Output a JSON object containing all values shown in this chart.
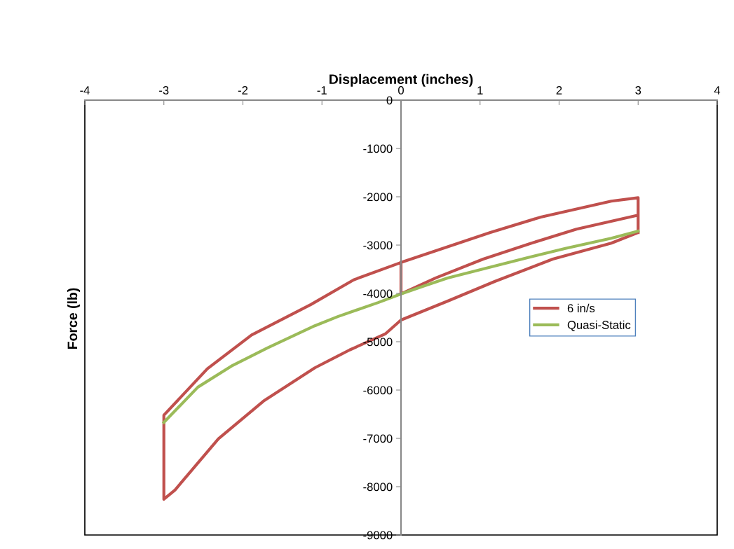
{
  "chart_data": {
    "type": "line",
    "xlabel": "Displacement (inches)",
    "ylabel": "Force (lb)",
    "xlim": [
      -4,
      4
    ],
    "xticks": [
      -4,
      -3,
      -2,
      -1,
      0,
      1,
      2,
      3,
      4
    ],
    "ylim": [
      -9000,
      0
    ],
    "yticks": [
      -9000,
      -8000,
      -7000,
      -6000,
      -5000,
      -4000,
      -3000,
      -2000,
      -1000,
      0
    ],
    "grid": false,
    "legend": "right",
    "series": [
      {
        "name": "6 in/s",
        "color": "#c0504d",
        "x": [
          0,
          0,
          0.44,
          1.04,
          1.63,
          2.22,
          3.0,
          3.0,
          2.66,
          1.92,
          1.19,
          0.59,
          0,
          -0.2,
          -0.65,
          -1.09,
          -1.74,
          -2.31,
          -2.86,
          -3.0,
          -3.0,
          -2.45,
          -1.89,
          -1.14,
          -0.6,
          0,
          1.13,
          1.77,
          2.66,
          3.0,
          3.0
        ],
        "values": [
          -3360,
          -4010,
          -3680,
          -3290,
          -2970,
          -2670,
          -2380,
          -2740,
          -2960,
          -3290,
          -3750,
          -4160,
          -4550,
          -4840,
          -5170,
          -5540,
          -6230,
          -7010,
          -8070,
          -8260,
          -6520,
          -5560,
          -4860,
          -4230,
          -3720,
          -3360,
          -2740,
          -2420,
          -2090,
          -2020,
          -2740
        ]
      },
      {
        "name": "Quasi-Static",
        "color": "#9bbb59",
        "x": [
          -3.0,
          -2.57,
          -2.13,
          -1.69,
          -1.09,
          -0.8,
          -0.29,
          0,
          0.3,
          0.59,
          1.19,
          1.6,
          2.08,
          2.66,
          3.0
        ],
        "values": [
          -6670,
          -5940,
          -5490,
          -5130,
          -4670,
          -4480,
          -4190,
          -4010,
          -3840,
          -3680,
          -3430,
          -3260,
          -3070,
          -2860,
          -2710
        ]
      }
    ]
  }
}
